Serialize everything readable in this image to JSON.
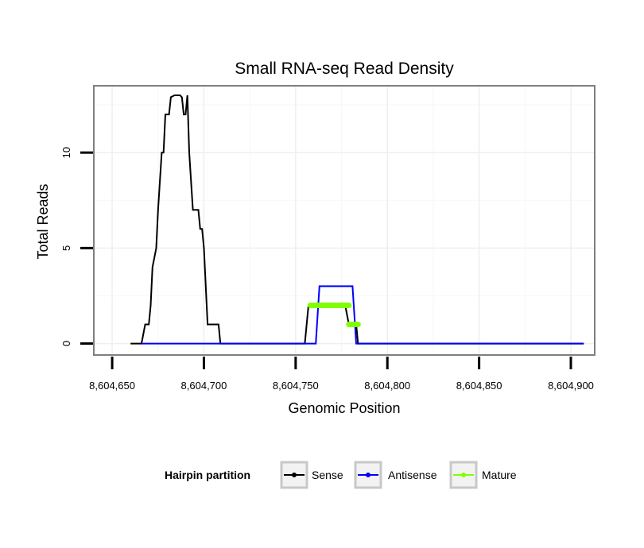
{
  "chart_data": {
    "type": "line",
    "title": "Small RNA-seq Read Density",
    "xlabel": "Genomic Position",
    "ylabel": "Total Reads",
    "xlim": [
      8604640,
      8604913
    ],
    "ylim": [
      -0.6,
      13.5
    ],
    "x_ticks": [
      8604650,
      8604700,
      8604750,
      8604800,
      8604850,
      8604900
    ],
    "x_tick_labels": [
      "8,604,650",
      "8,604,700",
      "8,604,750",
      "8,604,800",
      "8,604,850",
      "8,604,900"
    ],
    "y_ticks": [
      0,
      5,
      10
    ],
    "y_tick_labels": [
      "0",
      "5",
      "10"
    ],
    "grid": true,
    "legend": {
      "title": "Hairpin partition",
      "position": "bottom",
      "entries": [
        "Sense",
        "Antisense",
        "Mature"
      ]
    },
    "series": [
      {
        "name": "Sense",
        "color": "#000000",
        "x": [
          8604660,
          8604666,
          8604667,
          8604668,
          8604670,
          8604671,
          8604672,
          8604674,
          8604675,
          8604676,
          8604677,
          8604678,
          8604679,
          8604680,
          8604681,
          8604682,
          8604684,
          8604685,
          8604687,
          8604688,
          8604689,
          8604690,
          8604691,
          8604692,
          8604694,
          8604695,
          8604697,
          8604698,
          8604699,
          8604700,
          8604701,
          8604702,
          8604704,
          8604705,
          8604707,
          8604708,
          8604709,
          8604755,
          8604756,
          8604757,
          8604758,
          8604763,
          8604768,
          8604773,
          8604777,
          8604778,
          8604779,
          8604781,
          8604782,
          8604783,
          8604784,
          8604786,
          8604795,
          8604850,
          8604907
        ],
        "y": [
          0,
          0,
          0.5,
          1,
          1,
          2,
          4,
          5,
          7,
          8.5,
          10,
          10,
          12,
          12,
          12,
          12.9,
          13,
          13,
          13,
          12.9,
          12,
          12,
          13,
          10,
          7,
          7,
          7,
          6,
          6,
          5,
          3,
          1,
          1,
          1,
          1,
          1,
          0,
          0,
          1,
          2,
          2,
          2,
          2,
          2,
          2,
          1.5,
          1,
          1,
          1,
          1,
          0,
          0,
          0,
          0,
          0
        ]
      },
      {
        "name": "Antisense",
        "color": "#0000ff",
        "x": [
          8604666,
          8604761,
          8604763,
          8604772,
          8604781,
          8604783,
          8604785,
          8604907
        ],
        "y": [
          0,
          0,
          3,
          3,
          3,
          0,
          0,
          0
        ]
      },
      {
        "name": "Mature",
        "color": "#7fff00",
        "segments": [
          {
            "x": [
              8604758,
              8604779
            ],
            "y": [
              2,
              2
            ]
          },
          {
            "x": [
              8604779,
              8604784
            ],
            "y": [
              1,
              1
            ]
          }
        ]
      }
    ]
  }
}
